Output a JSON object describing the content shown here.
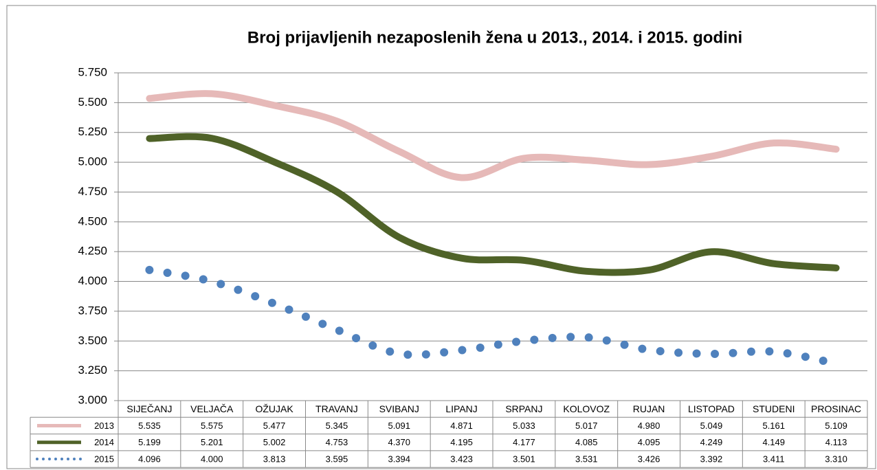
{
  "chart_data": {
    "type": "line",
    "title": "Broj prijavljenih nezaposlenih žena u 2013., 2014. i 2015. godini",
    "categories": [
      "SIJEČANJ",
      "VELJAČA",
      "OŽUJAK",
      "TRAVANJ",
      "SVIBANJ",
      "LIPANJ",
      "SRPANJ",
      "KOLOVOZ",
      "RUJAN",
      "LISTOPAD",
      "STUDENI",
      "PROSINAC"
    ],
    "series": [
      {
        "name": "2013",
        "color": "#e6b9b8",
        "style": "solid",
        "values": [
          5535,
          5575,
          5477,
          5345,
          5091,
          4871,
          5033,
          5017,
          4980,
          5049,
          5161,
          5109
        ],
        "value_labels": [
          "5.535",
          "5.575",
          "5.477",
          "5.345",
          "5.091",
          "4.871",
          "5.033",
          "5.017",
          "4.980",
          "5.049",
          "5.161",
          "5.109"
        ]
      },
      {
        "name": "2014",
        "color": "#4f6228",
        "style": "solid",
        "values": [
          5199,
          5201,
          5002,
          4753,
          4370,
          4195,
          4177,
          4085,
          4095,
          4249,
          4149,
          4113
        ],
        "value_labels": [
          "5.199",
          "5.201",
          "5.002",
          "4.753",
          "4.370",
          "4.195",
          "4.177",
          "4.085",
          "4.095",
          "4.249",
          "4.149",
          "4.113"
        ]
      },
      {
        "name": "2015",
        "color": "#4f81bd",
        "style": "dotted",
        "values": [
          4096,
          4000,
          3813,
          3595,
          3394,
          3423,
          3501,
          3531,
          3426,
          3392,
          3411,
          3310
        ],
        "value_labels": [
          "4.096",
          "4.000",
          "3.813",
          "3.595",
          "3.394",
          "3.423",
          "3.501",
          "3.531",
          "3.426",
          "3.392",
          "3.411",
          "3.310"
        ]
      }
    ],
    "ylim": [
      3000,
      5750
    ],
    "yticks": [
      {
        "value": 3000,
        "label": "3.000"
      },
      {
        "value": 3250,
        "label": "3.250"
      },
      {
        "value": 3500,
        "label": "3.500"
      },
      {
        "value": 3750,
        "label": "3.750"
      },
      {
        "value": 4000,
        "label": "4.000"
      },
      {
        "value": 4250,
        "label": "4.250"
      },
      {
        "value": 4500,
        "label": "4.500"
      },
      {
        "value": 4750,
        "label": "4.750"
      },
      {
        "value": 5000,
        "label": "5.000"
      },
      {
        "value": 5250,
        "label": "5.250"
      },
      {
        "value": 5500,
        "label": "5.500"
      },
      {
        "value": 5750,
        "label": "5.750"
      }
    ],
    "grid": true
  }
}
